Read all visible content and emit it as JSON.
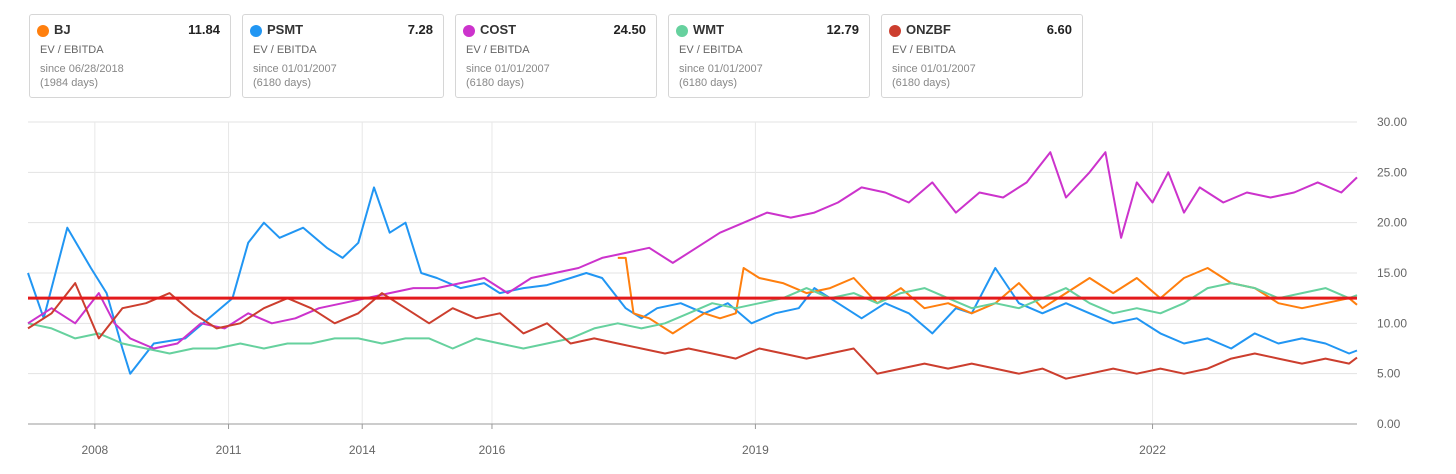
{
  "cards": [
    {
      "ticker": "BJ",
      "value": "11.84",
      "metric": "EV / EBITDA",
      "since": "since 06/28/2018",
      "days": "(1984 days)",
      "color": "#ff7f0e"
    },
    {
      "ticker": "PSMT",
      "value": "7.28",
      "metric": "EV / EBITDA",
      "since": "since 01/01/2007",
      "days": "(6180 days)",
      "color": "#2196f3"
    },
    {
      "ticker": "COST",
      "value": "24.50",
      "metric": "EV / EBITDA",
      "since": "since 01/01/2007",
      "days": "(6180 days)",
      "color": "#cc33cc"
    },
    {
      "ticker": "WMT",
      "value": "12.79",
      "metric": "EV / EBITDA",
      "since": "since 01/01/2007",
      "days": "(6180 days)",
      "color": "#66d19e"
    },
    {
      "ticker": "ONZBF",
      "value": "6.60",
      "metric": "EV / EBITDA",
      "since": "since 01/01/2007",
      "days": "(6180 days)",
      "color": "#cc3e2e"
    }
  ],
  "chart_data": {
    "type": "line",
    "title": "",
    "xlabel": "",
    "ylabel": "",
    "xlim": [
      2007.0,
      2023.9
    ],
    "ylim": [
      0,
      30
    ],
    "grid": true,
    "x_ticks": [
      {
        "label": "2008",
        "x": 2007.85
      },
      {
        "label": "2011",
        "x": 2009.55
      },
      {
        "label": "2014",
        "x": 2011.25
      },
      {
        "label": "2016",
        "x": 2012.9
      },
      {
        "label": "2019",
        "x": 2016.25
      },
      {
        "label": "2022",
        "x": 2021.3
      }
    ],
    "y_ticks": [
      "0.00",
      "5.00",
      "10.00",
      "15.00",
      "20.00",
      "25.00",
      "30.00"
    ],
    "reference_line": {
      "value": 12.5,
      "color": "#e31a1c"
    },
    "series": [
      {
        "name": "PSMT",
        "color": "#2196f3",
        "x": [
          2007.0,
          2007.2,
          2007.5,
          2007.8,
          2008.0,
          2008.2,
          2008.3,
          2008.6,
          2009.0,
          2009.3,
          2009.6,
          2009.8,
          2010.0,
          2010.2,
          2010.5,
          2010.8,
          2011.0,
          2011.2,
          2011.4,
          2011.6,
          2011.8,
          2012.0,
          2012.2,
          2012.5,
          2012.8,
          2013.0,
          2013.3,
          2013.6,
          2013.9,
          2014.1,
          2014.3,
          2014.6,
          2014.8,
          2015.0,
          2015.3,
          2015.6,
          2015.9,
          2016.2,
          2016.5,
          2016.8,
          2017.0,
          2017.3,
          2017.6,
          2017.9,
          2018.2,
          2018.5,
          2018.8,
          2019.0,
          2019.3,
          2019.6,
          2019.9,
          2020.2,
          2020.5,
          2020.8,
          2021.1,
          2021.4,
          2021.7,
          2022.0,
          2022.3,
          2022.6,
          2022.9,
          2023.2,
          2023.5,
          2023.8,
          2023.9
        ],
        "y": [
          15.0,
          10.5,
          19.5,
          15.5,
          13.0,
          7.5,
          5.0,
          8.0,
          8.5,
          10.5,
          12.5,
          18.0,
          20.0,
          18.5,
          19.5,
          17.5,
          16.5,
          18.0,
          23.5,
          19.0,
          20.0,
          15.0,
          14.5,
          13.5,
          14.0,
          13.0,
          13.5,
          13.8,
          14.5,
          15.0,
          14.5,
          11.5,
          10.5,
          11.5,
          12.0,
          11.0,
          12.0,
          10.0,
          11.0,
          11.5,
          13.5,
          12.0,
          10.5,
          12.0,
          11.0,
          9.0,
          11.5,
          11.0,
          15.5,
          12.0,
          11.0,
          12.0,
          11.0,
          10.0,
          10.5,
          9.0,
          8.0,
          8.5,
          7.5,
          9.0,
          8.0,
          8.5,
          8.0,
          7.0,
          7.3
        ]
      },
      {
        "name": "BJ",
        "color": "#ff7f0e",
        "x": [
          2014.5,
          2014.6,
          2014.7,
          2014.9,
          2015.2,
          2015.4,
          2015.6,
          2015.8,
          2016.0,
          2016.1,
          2016.3,
          2016.6,
          2016.9,
          2017.2,
          2017.5,
          2017.8,
          2018.1,
          2018.4,
          2018.7,
          2019.0,
          2019.3,
          2019.6,
          2019.9,
          2020.2,
          2020.5,
          2020.8,
          2021.1,
          2021.4,
          2021.7,
          2022.0,
          2022.3,
          2022.6,
          2022.9,
          2023.2,
          2023.5,
          2023.8,
          2023.9
        ],
        "y": [
          16.5,
          16.5,
          11.0,
          10.5,
          9.0,
          10.0,
          11.0,
          10.5,
          11.0,
          15.5,
          14.5,
          14.0,
          13.0,
          13.5,
          14.5,
          12.0,
          13.5,
          11.5,
          12.0,
          11.0,
          12.0,
          14.0,
          11.5,
          13.0,
          14.5,
          13.0,
          14.5,
          12.5,
          14.5,
          15.5,
          14.0,
          13.5,
          12.0,
          11.5,
          12.0,
          12.5,
          11.84
        ]
      },
      {
        "name": "WMT",
        "color": "#66d19e",
        "x": [
          2007.0,
          2007.3,
          2007.6,
          2007.9,
          2008.2,
          2008.5,
          2008.8,
          2009.1,
          2009.4,
          2009.7,
          2010.0,
          2010.3,
          2010.6,
          2010.9,
          2011.2,
          2011.5,
          2011.8,
          2012.1,
          2012.4,
          2012.7,
          2013.0,
          2013.3,
          2013.6,
          2013.9,
          2014.2,
          2014.5,
          2014.8,
          2015.1,
          2015.4,
          2015.7,
          2016.0,
          2016.3,
          2016.6,
          2016.9,
          2017.2,
          2017.5,
          2017.8,
          2018.1,
          2018.4,
          2018.7,
          2019.0,
          2019.3,
          2019.6,
          2019.9,
          2020.2,
          2020.5,
          2020.8,
          2021.1,
          2021.4,
          2021.7,
          2022.0,
          2022.3,
          2022.6,
          2022.9,
          2023.2,
          2023.5,
          2023.8,
          2023.9
        ],
        "y": [
          10.0,
          9.5,
          8.5,
          9.0,
          8.0,
          7.5,
          7.0,
          7.5,
          7.5,
          8.0,
          7.5,
          8.0,
          8.0,
          8.5,
          8.5,
          8.0,
          8.5,
          8.5,
          7.5,
          8.5,
          8.0,
          7.5,
          8.0,
          8.5,
          9.5,
          10.0,
          9.5,
          10.0,
          11.0,
          12.0,
          11.5,
          12.0,
          12.5,
          13.5,
          12.5,
          13.0,
          12.0,
          13.0,
          13.5,
          12.5,
          11.5,
          12.0,
          11.5,
          12.5,
          13.5,
          12.0,
          11.0,
          11.5,
          11.0,
          12.0,
          13.5,
          14.0,
          13.5,
          12.5,
          13.0,
          13.5,
          12.5,
          12.79
        ]
      },
      {
        "name": "COST",
        "color": "#cc33cc",
        "x": [
          2007.0,
          2007.3,
          2007.6,
          2007.9,
          2008.1,
          2008.3,
          2008.6,
          2008.9,
          2009.2,
          2009.5,
          2009.8,
          2010.1,
          2010.4,
          2010.7,
          2011.0,
          2011.3,
          2011.6,
          2011.9,
          2012.2,
          2012.5,
          2012.8,
          2013.1,
          2013.4,
          2013.7,
          2014.0,
          2014.3,
          2014.6,
          2014.9,
          2015.2,
          2015.5,
          2015.8,
          2016.1,
          2016.4,
          2016.7,
          2017.0,
          2017.3,
          2017.6,
          2017.9,
          2018.2,
          2018.5,
          2018.8,
          2019.1,
          2019.4,
          2019.7,
          2020.0,
          2020.2,
          2020.5,
          2020.7,
          2020.9,
          2021.1,
          2021.3,
          2021.5,
          2021.7,
          2021.9,
          2022.2,
          2022.5,
          2022.8,
          2023.1,
          2023.4,
          2023.7,
          2023.9
        ],
        "y": [
          10.0,
          11.5,
          10.0,
          13.0,
          10.0,
          8.5,
          7.5,
          8.0,
          10.0,
          9.5,
          11.0,
          10.0,
          10.5,
          11.5,
          12.0,
          12.5,
          13.0,
          13.5,
          13.5,
          14.0,
          14.5,
          13.0,
          14.5,
          15.0,
          15.5,
          16.5,
          17.0,
          17.5,
          16.0,
          17.5,
          19.0,
          20.0,
          21.0,
          20.5,
          21.0,
          22.0,
          23.5,
          23.0,
          22.0,
          24.0,
          21.0,
          23.0,
          22.5,
          24.0,
          27.0,
          22.5,
          25.0,
          27.0,
          18.5,
          24.0,
          22.0,
          25.0,
          21.0,
          23.5,
          22.0,
          23.0,
          22.5,
          23.0,
          24.0,
          23.0,
          24.5
        ]
      },
      {
        "name": "ONZBF",
        "color": "#cc3e2e",
        "x": [
          2007.0,
          2007.3,
          2007.6,
          2007.9,
          2008.2,
          2008.5,
          2008.8,
          2009.1,
          2009.4,
          2009.7,
          2010.0,
          2010.3,
          2010.6,
          2010.9,
          2011.2,
          2011.5,
          2011.8,
          2012.1,
          2012.4,
          2012.7,
          2013.0,
          2013.3,
          2013.6,
          2013.9,
          2014.2,
          2014.5,
          2014.8,
          2015.1,
          2015.4,
          2015.7,
          2016.0,
          2016.3,
          2016.6,
          2016.9,
          2017.2,
          2017.5,
          2017.8,
          2018.1,
          2018.4,
          2018.7,
          2019.0,
          2019.3,
          2019.6,
          2019.9,
          2020.2,
          2020.5,
          2020.8,
          2021.1,
          2021.4,
          2021.7,
          2022.0,
          2022.3,
          2022.6,
          2022.9,
          2023.2,
          2023.5,
          2023.8,
          2023.9
        ],
        "y": [
          9.5,
          11.0,
          14.0,
          8.5,
          11.5,
          12.0,
          13.0,
          11.0,
          9.5,
          10.0,
          11.5,
          12.5,
          11.5,
          10.0,
          11.0,
          13.0,
          11.5,
          10.0,
          11.5,
          10.5,
          11.0,
          9.0,
          10.0,
          8.0,
          8.5,
          8.0,
          7.5,
          7.0,
          7.5,
          7.0,
          6.5,
          7.5,
          7.0,
          6.5,
          7.0,
          7.5,
          5.0,
          5.5,
          6.0,
          5.5,
          6.0,
          5.5,
          5.0,
          5.5,
          4.5,
          5.0,
          5.5,
          5.0,
          5.5,
          5.0,
          5.5,
          6.5,
          7.0,
          6.5,
          6.0,
          6.5,
          6.0,
          6.6
        ]
      }
    ]
  }
}
